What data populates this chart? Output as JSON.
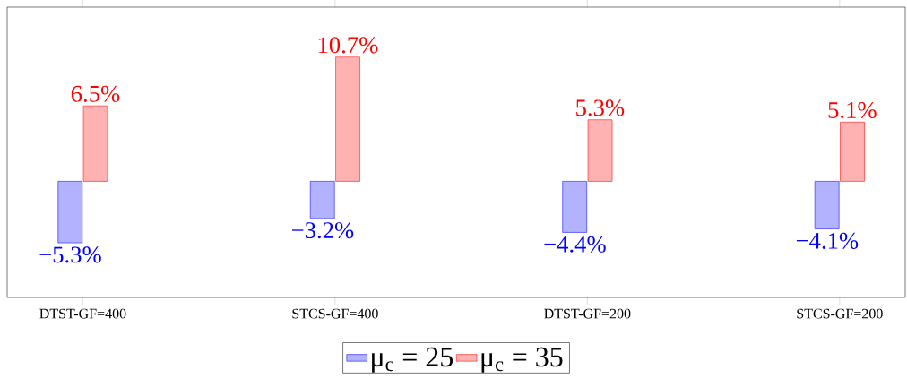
{
  "chart_data": {
    "type": "bar",
    "categories": [
      "DTST-GF=400",
      "STCS-GF=400",
      "DTST-GF=200",
      "STCS-GF=200"
    ],
    "series": [
      {
        "name": "μ$_{c}$ = 25",
        "color": "#0000ff",
        "values": [
          -5.3,
          -3.2,
          -4.4,
          -4.1
        ],
        "value_labels": [
          "−5.3%",
          "−3.2%",
          "−4.4%",
          "−4.1%"
        ]
      },
      {
        "name": "μ$_{c}$ = 35",
        "color": "#ff0000",
        "values": [
          6.5,
          10.7,
          5.3,
          5.1
        ],
        "value_labels": [
          "6.5%",
          "10.7%",
          "5.3%",
          "5.1%"
        ]
      }
    ],
    "ylim": [
      -10,
      15
    ],
    "tick_labels": "x",
    "legend": "bottom",
    "grid": false
  }
}
